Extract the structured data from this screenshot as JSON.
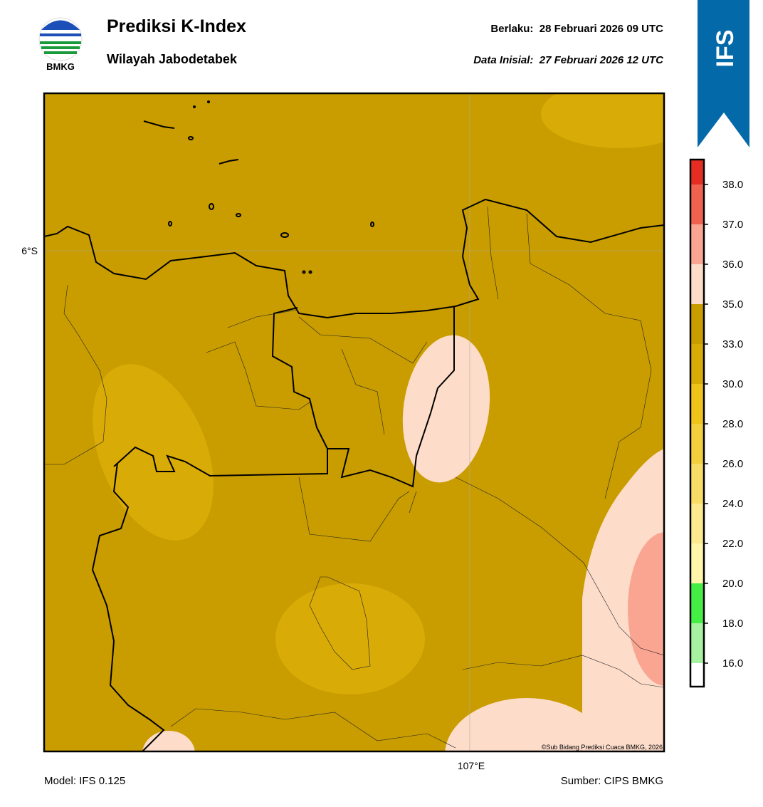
{
  "header": {
    "title": "Prediksi K-Index",
    "subtitle": "Wilayah Jabodetabek",
    "valid": "Berlaku:  28 Februari 2026 09 UTC",
    "init": "Data Inisial:  27 Februari 2026 12 UTC",
    "logo_text": "BMKG",
    "badge": "IFS"
  },
  "map": {
    "lat_label": "6°S",
    "lon_label": "107°E",
    "credit": "©Sub Bidang Prediksi Cuaca BMKG, 2026"
  },
  "colorbar": {
    "ticks": [
      "16.0",
      "18.0",
      "20.0",
      "22.0",
      "24.0",
      "26.0",
      "28.0",
      "30.0",
      "33.0",
      "35.0",
      "36.0",
      "37.0",
      "38.0"
    ],
    "colors": [
      "#ffffff",
      "#a6f2a0",
      "#44ee44",
      "#fff6aa",
      "#fde98e",
      "#f8dc66",
      "#f3cf3e",
      "#efc31a",
      "#d9ab06",
      "#c99d00",
      "#fddcca",
      "#f9a591",
      "#f0624e",
      "#e62d22"
    ]
  },
  "footer": {
    "model": "Model: IFS 0.125",
    "source": "Sumber: CIPS BMKG"
  }
}
